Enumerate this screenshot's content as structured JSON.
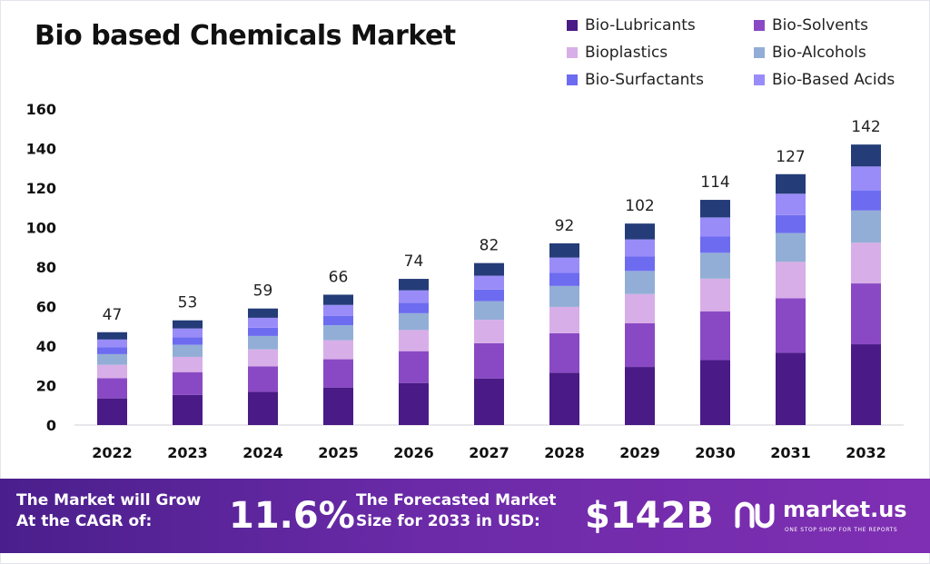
{
  "title": "Bio based Chemicals Market",
  "legend": [
    {
      "name": "Bio-Lubricants",
      "color": "#4a1a86"
    },
    {
      "name": "Bio-Solvents",
      "color": "#8a49c4"
    },
    {
      "name": "Bioplastics",
      "color": "#d8aee8"
    },
    {
      "name": "Bio-Alcohols",
      "color": "#93aed6"
    },
    {
      "name": "Bio-Surfactants",
      "color": "#6d6cf0"
    },
    {
      "name": "Bio-Based Acids",
      "color": "#9a8cf8"
    }
  ],
  "chart_data": {
    "type": "bar",
    "stacked": true,
    "title": "Bio based Chemicals Market",
    "categories": [
      "2022",
      "2023",
      "2024",
      "2025",
      "2026",
      "2027",
      "2028",
      "2029",
      "2030",
      "2031",
      "2032"
    ],
    "totals": [
      47,
      53,
      59,
      66,
      74,
      82,
      92,
      102,
      114,
      127,
      142
    ],
    "series": [
      {
        "name": "Bio-Lubricants",
        "color": "#4a1a86",
        "values": [
          13.5,
          15.3,
          16.9,
          19.0,
          21.3,
          23.6,
          26.5,
          29.4,
          32.9,
          36.6,
          40.9
        ]
      },
      {
        "name": "Bio-Solvents",
        "color": "#8a49c4",
        "values": [
          10.2,
          11.5,
          12.8,
          14.3,
          16.1,
          17.8,
          20.0,
          22.1,
          24.7,
          27.6,
          30.8
        ]
      },
      {
        "name": "Bioplastics",
        "color": "#d8aee8",
        "values": [
          6.8,
          7.7,
          8.6,
          9.6,
          10.7,
          11.9,
          13.3,
          14.8,
          16.5,
          18.4,
          20.6
        ]
      },
      {
        "name": "Bio-Alcohols",
        "color": "#93aed6",
        "values": [
          5.4,
          6.1,
          6.8,
          7.6,
          8.5,
          9.4,
          10.6,
          11.7,
          13.1,
          14.6,
          16.3
        ]
      },
      {
        "name": "Bio-Surfactants",
        "color": "#6d6cf0",
        "values": [
          3.4,
          3.8,
          4.2,
          4.7,
          5.3,
          5.9,
          6.6,
          7.3,
          8.2,
          9.1,
          10.2
        ]
      },
      {
        "name": "Bio-Based Acids",
        "color": "#9a8cf8",
        "values": [
          4.0,
          4.5,
          5.0,
          5.6,
          6.3,
          7.0,
          7.8,
          8.7,
          9.7,
          10.8,
          12.1
        ]
      },
      {
        "name": "",
        "color": "#243c78",
        "values": [
          3.7,
          4.1,
          4.7,
          5.2,
          5.8,
          6.4,
          7.2,
          8.0,
          8.9,
          9.9,
          11.1
        ]
      }
    ],
    "ylim": [
      0,
      160
    ],
    "yticks": [
      0,
      20,
      40,
      60,
      80,
      100,
      120,
      140,
      160
    ],
    "grid": false,
    "legend_position": "top-right"
  },
  "banner": {
    "cagr_text_line1": "The Market will Grow",
    "cagr_text_line2": "At the CAGR of:",
    "cagr_value": "11.6%",
    "forecast_text_line1": "The Forecasted Market",
    "forecast_text_line2": "Size for 2033 in USD:",
    "forecast_value": "$142B",
    "logo_name": "market.us",
    "logo_tagline": "ONE STOP SHOP FOR THE REPORTS"
  }
}
